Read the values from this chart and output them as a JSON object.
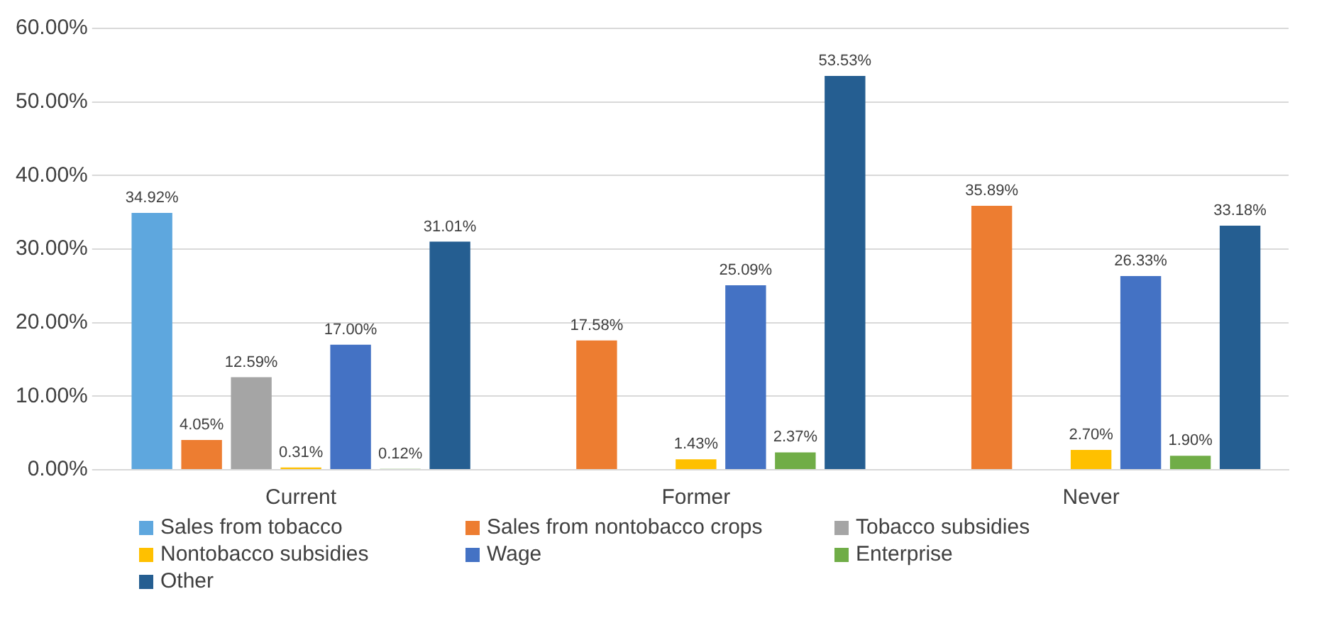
{
  "chart_data": {
    "type": "bar",
    "categories": [
      "Current",
      "Former",
      "Never"
    ],
    "series": [
      {
        "name": "Sales from tobacco",
        "color": "#5ea7de",
        "values": [
          34.92,
          null,
          null
        ],
        "value_labels": [
          "34.92%",
          null,
          null
        ]
      },
      {
        "name": "Sales from nontobacco crops",
        "color": "#ed7d31",
        "values": [
          4.05,
          17.58,
          35.89
        ],
        "value_labels": [
          "4.05%",
          "17.58%",
          "35.89%"
        ]
      },
      {
        "name": "Tobacco subsidies",
        "color": "#a5a5a5",
        "values": [
          12.59,
          null,
          null
        ],
        "value_labels": [
          "12.59%",
          null,
          null
        ]
      },
      {
        "name": "Nontobacco subsidies",
        "color": "#ffc000",
        "values": [
          0.31,
          1.43,
          2.7
        ],
        "value_labels": [
          "0.31%",
          "1.43%",
          "2.70%"
        ]
      },
      {
        "name": "Wage",
        "color": "#4472c4",
        "values": [
          17.0,
          25.09,
          26.33
        ],
        "value_labels": [
          "17.00%",
          "25.09%",
          "26.33%"
        ]
      },
      {
        "name": "Enterprise",
        "color": "#70ad47",
        "values": [
          0.12,
          2.37,
          1.9
        ],
        "value_labels": [
          "0.12%",
          "2.37%",
          "1.90%"
        ]
      },
      {
        "name": "Other",
        "color": "#255e91",
        "values": [
          31.01,
          53.53,
          33.18
        ],
        "value_labels": [
          "31.01%",
          "53.53%",
          "33.18%"
        ]
      }
    ],
    "ylim": [
      0,
      60
    ],
    "yticks": [
      {
        "value": 0,
        "label": "0.00%"
      },
      {
        "value": 10,
        "label": "10.00%"
      },
      {
        "value": 20,
        "label": "20.00%"
      },
      {
        "value": 30,
        "label": "30.00%"
      },
      {
        "value": 40,
        "label": "40.00%"
      },
      {
        "value": 50,
        "label": "50.00%"
      },
      {
        "value": 60,
        "label": "60.00%"
      }
    ],
    "grid": "y",
    "legend": "bottom"
  }
}
